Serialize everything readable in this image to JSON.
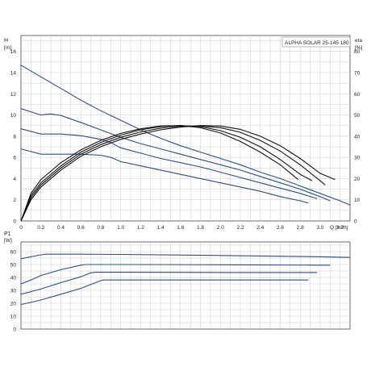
{
  "chart_data": [
    {
      "type": "line",
      "title": "ALPHA SOLAR 25-145  180",
      "ylabel": "H",
      "yunit": "[m]",
      "y2label": "eta",
      "y2unit": "[%]",
      "xlabel": "Q",
      "xunit": "[m³/h]",
      "xlim": [
        0,
        3.3
      ],
      "ylim": [
        0,
        17.5
      ],
      "y2lim": [
        0,
        87.5
      ],
      "x_ticks": [
        "0",
        "0.2",
        "0.4",
        "0.6",
        "0.8",
        "1.0",
        "1.2",
        "1.4",
        "1.6",
        "1.8",
        "2.0",
        "2.2",
        "2.4",
        "2.6",
        "2.8",
        "3.0",
        "3.2"
      ],
      "y_ticks": [
        "0",
        "2",
        "4",
        "6",
        "8",
        "10",
        "12",
        "14",
        "16"
      ],
      "y2_ticks": [
        "0",
        "10",
        "20",
        "30",
        "40",
        "50",
        "60",
        "70",
        "80"
      ],
      "grid": true,
      "head_series": [
        {
          "points": [
            [
              0,
              14.7
            ],
            [
              0.2,
              13.6
            ],
            [
              0.4,
              12.5
            ],
            [
              0.6,
              11.4
            ],
            [
              0.8,
              10.4
            ],
            [
              1.0,
              9.5
            ],
            [
              1.2,
              8.6
            ],
            [
              1.4,
              7.8
            ],
            [
              1.6,
              7.1
            ],
            [
              1.8,
              6.5
            ],
            [
              2.0,
              5.9
            ],
            [
              2.2,
              5.3
            ],
            [
              2.4,
              4.6
            ],
            [
              2.6,
              4.0
            ],
            [
              2.8,
              3.3
            ],
            [
              3.0,
              2.6
            ],
            [
              3.2,
              1.9
            ],
            [
              3.3,
              1.5
            ]
          ]
        },
        {
          "points": [
            [
              0,
              10.6
            ],
            [
              0.2,
              10.0
            ],
            [
              0.3,
              10.1
            ],
            [
              0.4,
              9.95
            ],
            [
              0.6,
              9.3
            ],
            [
              0.8,
              8.6
            ],
            [
              1.0,
              7.9
            ],
            [
              1.2,
              7.3
            ],
            [
              1.4,
              6.8
            ],
            [
              1.6,
              6.3
            ],
            [
              1.8,
              5.8
            ],
            [
              2.0,
              5.3
            ],
            [
              2.2,
              4.8
            ],
            [
              2.4,
              4.2
            ],
            [
              2.6,
              3.6
            ],
            [
              2.8,
              3.0
            ],
            [
              3.0,
              2.3
            ],
            [
              3.1,
              1.9
            ]
          ]
        },
        {
          "points": [
            [
              0,
              8.7
            ],
            [
              0.2,
              8.2
            ],
            [
              0.4,
              8.2
            ],
            [
              0.6,
              8.05
            ],
            [
              0.8,
              7.7
            ],
            [
              0.9,
              7.4
            ],
            [
              1.0,
              6.9
            ],
            [
              1.2,
              6.4
            ],
            [
              1.4,
              5.9
            ],
            [
              1.6,
              5.5
            ],
            [
              1.8,
              5.1
            ],
            [
              2.0,
              4.6
            ],
            [
              2.2,
              4.1
            ],
            [
              2.4,
              3.6
            ],
            [
              2.6,
              3.1
            ],
            [
              2.8,
              2.6
            ],
            [
              2.97,
              2.1
            ]
          ]
        },
        {
          "points": [
            [
              0,
              6.8
            ],
            [
              0.2,
              6.3
            ],
            [
              0.4,
              6.3
            ],
            [
              0.6,
              6.3
            ],
            [
              0.8,
              6.2
            ],
            [
              0.9,
              6.0
            ],
            [
              1.0,
              5.6
            ],
            [
              1.2,
              5.2
            ],
            [
              1.4,
              4.8
            ],
            [
              1.6,
              4.4
            ],
            [
              1.8,
              4.0
            ],
            [
              2.0,
              3.6
            ],
            [
              2.2,
              3.2
            ],
            [
              2.4,
              2.8
            ],
            [
              2.6,
              2.3
            ],
            [
              2.8,
              1.9
            ],
            [
              2.88,
              1.7
            ]
          ]
        }
      ],
      "eta_series": [
        {
          "points": [
            [
              0,
              0
            ],
            [
              0.1,
              10
            ],
            [
              0.2,
              16
            ],
            [
              0.4,
              24
            ],
            [
              0.6,
              30.5
            ],
            [
              0.8,
              35
            ],
            [
              1.0,
              38.5
            ],
            [
              1.2,
              41
            ],
            [
              1.4,
              43
            ],
            [
              1.6,
              44.3
            ],
            [
              1.8,
              45
            ],
            [
              2.0,
              44.8
            ],
            [
              2.2,
              43.2
            ],
            [
              2.4,
              40
            ],
            [
              2.6,
              35.5
            ],
            [
              2.8,
              29.5
            ],
            [
              3.0,
              22.5
            ],
            [
              3.15,
              19.5
            ]
          ]
        },
        {
          "points": [
            [
              0,
              0
            ],
            [
              0.1,
              11
            ],
            [
              0.2,
              17
            ],
            [
              0.4,
              25
            ],
            [
              0.6,
              31.5
            ],
            [
              0.8,
              36
            ],
            [
              1.0,
              39.5
            ],
            [
              1.2,
              42
            ],
            [
              1.4,
              43.8
            ],
            [
              1.6,
              44.7
            ],
            [
              1.8,
              44.8
            ],
            [
              2.0,
              44
            ],
            [
              2.2,
              41.8
            ],
            [
              2.4,
              38
            ],
            [
              2.6,
              33
            ],
            [
              2.8,
              26.5
            ],
            [
              3.0,
              19
            ],
            [
              3.05,
              17
            ]
          ]
        },
        {
          "points": [
            [
              0,
              0
            ],
            [
              0.1,
              12
            ],
            [
              0.2,
              18
            ],
            [
              0.4,
              26
            ],
            [
              0.6,
              32.5
            ],
            [
              0.8,
              37
            ],
            [
              1.0,
              40.5
            ],
            [
              1.2,
              43
            ],
            [
              1.4,
              44.5
            ],
            [
              1.6,
              45
            ],
            [
              1.8,
              44.5
            ],
            [
              2.0,
              42.6
            ],
            [
              2.2,
              39.5
            ],
            [
              2.4,
              35
            ],
            [
              2.6,
              29
            ],
            [
              2.8,
              22
            ],
            [
              2.92,
              19
            ]
          ]
        },
        {
          "points": [
            [
              0,
              0
            ],
            [
              0.1,
              13
            ],
            [
              0.2,
              19.5
            ],
            [
              0.4,
              27.5
            ],
            [
              0.6,
              33.5
            ],
            [
              0.8,
              38
            ],
            [
              1.0,
              41.3
            ],
            [
              1.2,
              43.5
            ],
            [
              1.4,
              44.8
            ],
            [
              1.6,
              45
            ],
            [
              1.8,
              44
            ],
            [
              2.0,
              41.5
            ],
            [
              2.2,
              37.5
            ],
            [
              2.4,
              32.5
            ],
            [
              2.6,
              26.5
            ],
            [
              2.78,
              19.5
            ]
          ]
        }
      ]
    },
    {
      "type": "line",
      "ylabel": "P1",
      "yunit": "[W]",
      "xlim": [
        0,
        3.3
      ],
      "ylim": [
        0,
        67.5
      ],
      "y_ticks": [
        "0",
        "10",
        "20",
        "30",
        "40",
        "50",
        "60"
      ],
      "grid": true,
      "series": [
        {
          "points": [
            [
              0,
              54.5
            ],
            [
              0.2,
              57.5
            ],
            [
              0.25,
              58
            ],
            [
              0.6,
              58
            ],
            [
              1.0,
              57.8
            ],
            [
              2.0,
              57
            ],
            [
              3.0,
              56
            ],
            [
              3.3,
              55.5
            ]
          ]
        },
        {
          "points": [
            [
              0,
              35
            ],
            [
              0.1,
              38
            ],
            [
              0.2,
              41.5
            ],
            [
              0.4,
              46
            ],
            [
              0.6,
              49.5
            ],
            [
              0.65,
              50
            ],
            [
              1.0,
              50
            ],
            [
              2.0,
              49.8
            ],
            [
              3.0,
              49.5
            ],
            [
              3.1,
              49.5
            ]
          ]
        },
        {
          "points": [
            [
              0,
              27
            ],
            [
              0.2,
              31
            ],
            [
              0.4,
              36
            ],
            [
              0.6,
              40.5
            ],
            [
              0.7,
              43.5
            ],
            [
              0.75,
              44
            ],
            [
              1.0,
              44
            ],
            [
              2.0,
              43.8
            ],
            [
              2.97,
              43.8
            ]
          ]
        },
        {
          "points": [
            [
              0,
              19
            ],
            [
              0.2,
              22.5
            ],
            [
              0.4,
              27
            ],
            [
              0.6,
              31.5
            ],
            [
              0.8,
              37.5
            ],
            [
              0.83,
              38
            ],
            [
              1.5,
              38
            ],
            [
              2.0,
              38
            ],
            [
              2.88,
              38
            ]
          ]
        }
      ]
    }
  ],
  "colors": {
    "curve": "#2a4e82",
    "eta_curve": "#111111",
    "grid": "#c8c8c8",
    "frame": "#444444"
  }
}
